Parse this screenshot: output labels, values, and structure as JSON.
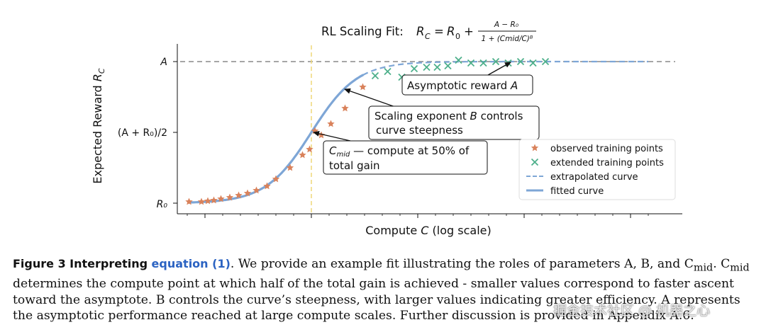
{
  "chart_data": {
    "type": "scatter",
    "title": "RL Scaling Fit: R_C = R_0 + (A − R_0) / (1 + (C_mid/C)^B)",
    "xlabel": "Compute  C  (log scale)",
    "ylabel": "Expected Reward  R_C",
    "y_ticks": [
      "R_0",
      "(A + R_0)/2",
      "A"
    ],
    "x_scale": "log",
    "grid": false,
    "legend_position": "center-right",
    "legend": [
      "observed training points",
      "extended training points",
      "extrapolated curve",
      "fitted curve"
    ],
    "normalized_units": "x in log-compute relative to C_mid (C_mid = 0); y as fraction of gain (R_0 = 0, A = 1)",
    "model": {
      "R0": 0,
      "A": 1,
      "Cmid_log": 0,
      "B": 1.55
    },
    "series": [
      {
        "name": "observed training points",
        "color": "#d9825b",
        "marker": "star",
        "x": [
          -3.45,
          -3.1,
          -2.92,
          -2.75,
          -2.55,
          -2.3,
          -2.05,
          -1.8,
          -1.55,
          -1.25,
          -1.0,
          -0.6,
          -0.25,
          -0.05,
          0.1,
          0.28,
          0.55,
          0.95,
          1.45
        ],
        "y": [
          0.01,
          0.01,
          0.015,
          0.02,
          0.03,
          0.04,
          0.055,
          0.07,
          0.09,
          0.12,
          0.17,
          0.25,
          0.34,
          0.38,
          0.51,
          0.48,
          0.56,
          0.67,
          0.82
        ]
      },
      {
        "name": "extended training points",
        "color": "#4daf8b",
        "marker": "x",
        "x": [
          1.8,
          2.15,
          2.55,
          2.9,
          3.25,
          3.55,
          3.85,
          4.15,
          4.5,
          4.85,
          5.2,
          5.55,
          5.9,
          6.25,
          6.6
        ],
        "y": [
          0.9,
          0.93,
          0.89,
          0.95,
          0.96,
          0.96,
          0.97,
          1.01,
          0.99,
          0.99,
          1.0,
          0.99,
          1.0,
          0.99,
          1.0
        ]
      },
      {
        "name": "fitted curve",
        "color": "#7ea6d6",
        "x_range": [
          -3.45,
          1.45
        ]
      },
      {
        "name": "extrapolated curve",
        "color": "#7ea6d6",
        "x_range": [
          1.45,
          9.5
        ]
      }
    ],
    "reference_lines": [
      {
        "type": "horizontal",
        "y": 1.0,
        "label": "A",
        "style": "dashed",
        "color": "#888888"
      },
      {
        "type": "vertical",
        "x": 0,
        "label": "C_mid",
        "style": "dashed",
        "color": "#f0da80"
      }
    ],
    "annotations": [
      {
        "text": "Asymptotic reward A",
        "points_to": [
          3.95,
          1.0
        ]
      },
      {
        "text": "Scaling exponent B controls\ncurve steepness",
        "points_to": [
          1.4,
          0.8
        ]
      },
      {
        "text": "C_mid — compute at 50% of\ntotal gain",
        "points_to": [
          0.1,
          0.49
        ]
      }
    ]
  },
  "caption": {
    "figure_label": "Figure 3",
    "figure_title": "Interpreting",
    "equation_link": "equation (1)",
    "line1_rest": ". We provide an example fit illustrating the roles of parameters A, B, and C",
    "mid_subscript": "mid",
    "line1_tail": ". C",
    "line2": " determines the compute point at which half of the total gain is achieved - smaller values correspond to faster ascent",
    "line3": "toward the asymptote. B controls the curve’s steepness, with larger values indicating greater efficiency. A represents",
    "line4": "the asymptotic performance reached at large compute scales. Further discussion is provided in Appendix A.6."
  },
  "watermark": "掘金技术社区 @ 机器之心"
}
